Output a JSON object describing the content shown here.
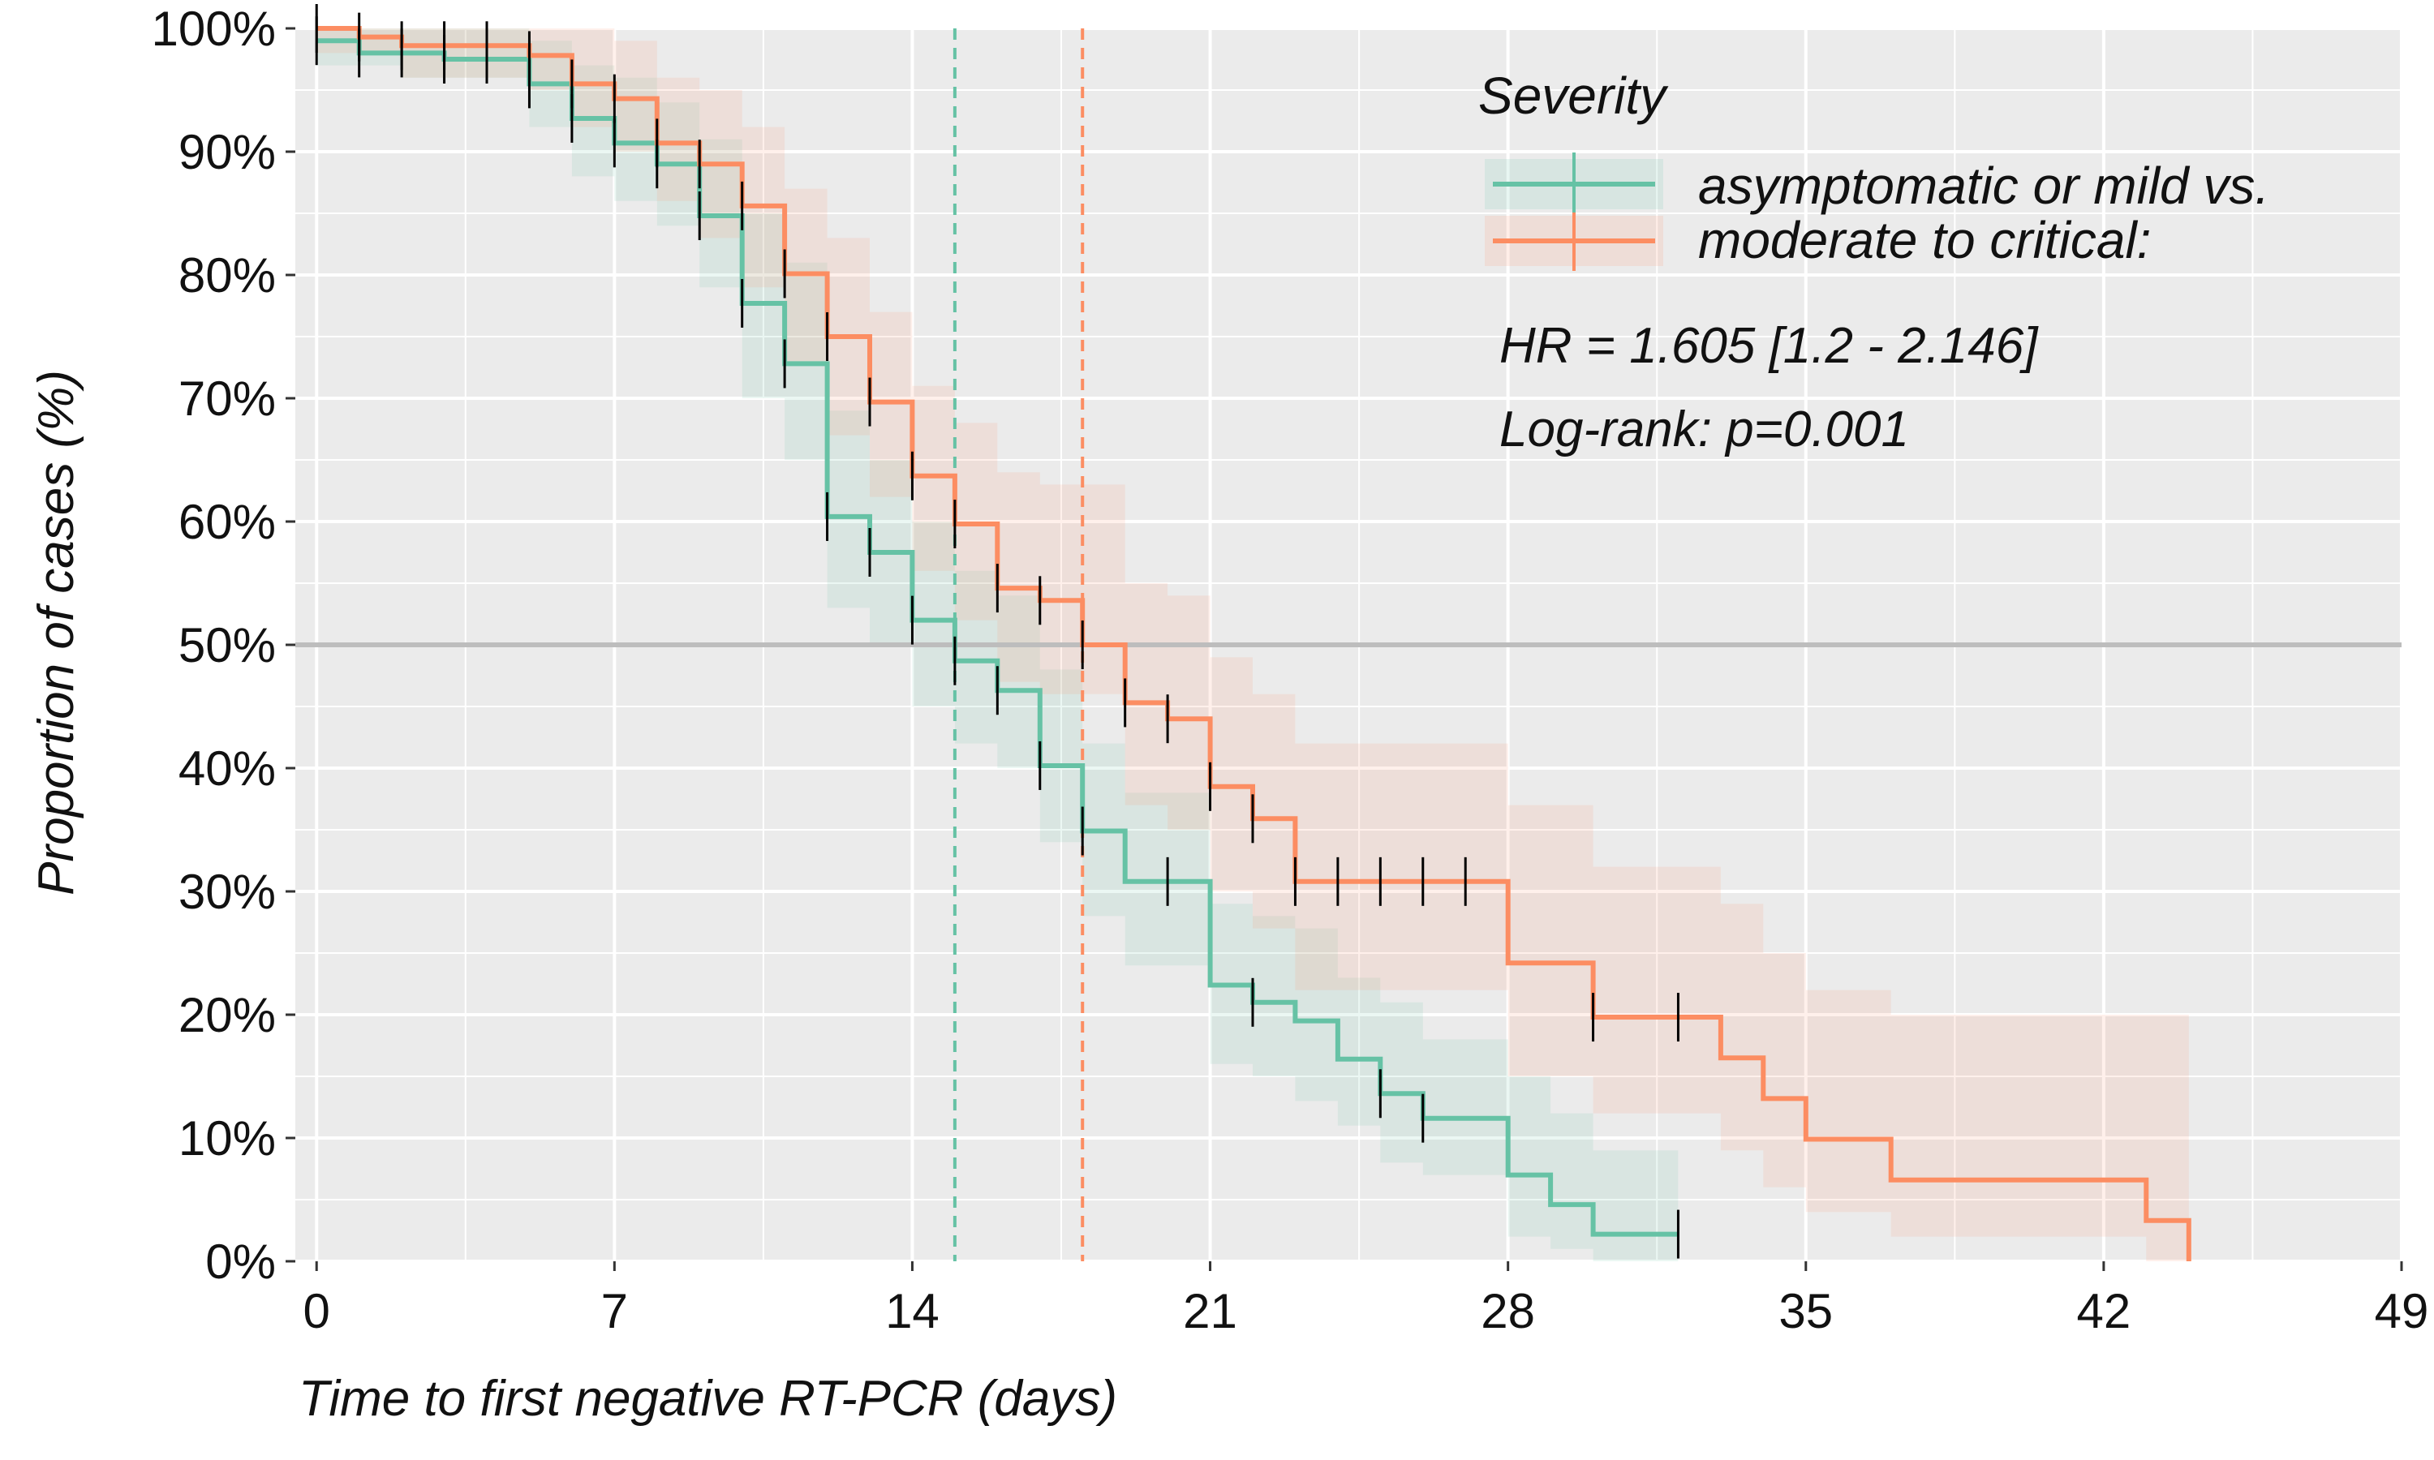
{
  "chart_data": {
    "type": "line",
    "subtype": "kaplan-meier",
    "xlabel": "Time to first negative RT-PCR (days)",
    "ylabel": "Proportion of cases (%)",
    "xlim": [
      -0.5,
      49
    ],
    "ylim": [
      0,
      1
    ],
    "x_ticks": [
      0,
      7,
      14,
      21,
      28,
      35,
      42,
      49
    ],
    "y_ticks": [
      0,
      0.1,
      0.2,
      0.3,
      0.4,
      0.5,
      0.6,
      0.7,
      0.8,
      0.9,
      1.0
    ],
    "y_tick_labels": [
      "0%",
      "10%",
      "20%",
      "30%",
      "40%",
      "50%",
      "60%",
      "70%",
      "80%",
      "90%",
      "100%"
    ],
    "grid": true,
    "reference_lines": {
      "horizontal_y": 0.5,
      "median_asymptomatic_or_mild_x": 15,
      "median_moderate_to_critical_x": 18
    },
    "legend": {
      "title": "Severity",
      "label_line1": "asymptomatic or mild vs.",
      "label_line2": "moderate to critical:",
      "placement": "top-right"
    },
    "annotations": {
      "hr": "HR = 1.605 [1.2 - 2.146]",
      "logrank": "Log-rank: p=0.001"
    },
    "series": [
      {
        "key": "asymptomatic_or_mild",
        "color": "#66c2a5",
        "steps": [
          [
            0,
            0.99
          ],
          [
            1,
            0.98
          ],
          [
            3,
            0.975
          ],
          [
            5,
            0.955
          ],
          [
            6,
            0.927
          ],
          [
            7,
            0.907
          ],
          [
            8,
            0.89
          ],
          [
            9,
            0.848
          ],
          [
            10,
            0.777
          ],
          [
            11,
            0.728
          ],
          [
            12,
            0.604
          ],
          [
            13,
            0.575
          ],
          [
            14,
            0.52
          ],
          [
            15,
            0.487
          ],
          [
            16,
            0.463
          ],
          [
            17,
            0.402
          ],
          [
            18,
            0.349
          ],
          [
            19,
            0.308
          ],
          [
            21,
            0.224
          ],
          [
            22,
            0.21
          ],
          [
            23,
            0.195
          ],
          [
            24,
            0.164
          ],
          [
            25,
            0.136
          ],
          [
            26,
            0.116
          ],
          [
            28,
            0.07
          ],
          [
            29,
            0.046
          ],
          [
            30,
            0.022
          ]
        ],
        "end_x": 32,
        "censor_x": [
          0,
          1,
          2,
          3,
          4,
          5,
          6,
          7,
          8,
          9,
          10,
          11,
          12,
          13,
          14,
          15,
          16,
          17,
          18,
          20,
          22,
          25,
          26,
          32
        ],
        "ci": [
          [
            0,
            1.0,
            0.97
          ],
          [
            2,
            1.0,
            0.96
          ],
          [
            5,
            0.99,
            0.92
          ],
          [
            6,
            0.97,
            0.88
          ],
          [
            7,
            0.96,
            0.86
          ],
          [
            8,
            0.94,
            0.84
          ],
          [
            9,
            0.91,
            0.79
          ],
          [
            10,
            0.85,
            0.7
          ],
          [
            11,
            0.81,
            0.65
          ],
          [
            12,
            0.69,
            0.53
          ],
          [
            13,
            0.65,
            0.5
          ],
          [
            14,
            0.6,
            0.45
          ],
          [
            15,
            0.56,
            0.42
          ],
          [
            16,
            0.54,
            0.4
          ],
          [
            17,
            0.48,
            0.34
          ],
          [
            18,
            0.42,
            0.28
          ],
          [
            19,
            0.38,
            0.24
          ],
          [
            21,
            0.29,
            0.16
          ],
          [
            22,
            0.28,
            0.15
          ],
          [
            23,
            0.27,
            0.13
          ],
          [
            24,
            0.23,
            0.11
          ],
          [
            25,
            0.21,
            0.08
          ],
          [
            26,
            0.18,
            0.07
          ],
          [
            28,
            0.15,
            0.02
          ],
          [
            29,
            0.12,
            0.01
          ],
          [
            30,
            0.09,
            0.0
          ]
        ]
      },
      {
        "key": "moderate_to_critical",
        "color": "#fc8d62",
        "steps": [
          [
            0,
            1.0
          ],
          [
            1,
            0.993
          ],
          [
            2,
            0.986
          ],
          [
            5,
            0.978
          ],
          [
            6,
            0.955
          ],
          [
            7,
            0.943
          ],
          [
            8,
            0.907
          ],
          [
            9,
            0.89
          ],
          [
            10,
            0.856
          ],
          [
            11,
            0.801
          ],
          [
            12,
            0.75
          ],
          [
            13,
            0.697
          ],
          [
            14,
            0.637
          ],
          [
            15,
            0.598
          ],
          [
            16,
            0.546
          ],
          [
            17,
            0.536
          ],
          [
            18,
            0.5
          ],
          [
            19,
            0.453
          ],
          [
            20,
            0.44
          ],
          [
            21,
            0.385
          ],
          [
            22,
            0.359
          ],
          [
            23,
            0.308
          ],
          [
            28,
            0.242
          ],
          [
            30,
            0.198
          ],
          [
            33,
            0.165
          ],
          [
            34,
            0.132
          ],
          [
            35,
            0.099
          ],
          [
            37,
            0.066
          ],
          [
            43,
            0.033
          ],
          [
            44,
            0.0
          ]
        ],
        "end_x": 44,
        "censor_x": [
          0,
          1,
          2,
          3,
          4,
          5,
          6,
          7,
          8,
          9,
          10,
          11,
          12,
          13,
          14,
          15,
          16,
          17,
          18,
          19,
          20,
          21,
          22,
          23,
          24,
          25,
          26,
          27,
          30,
          32
        ],
        "ci": [
          [
            0,
            1.0,
            0.98
          ],
          [
            2,
            1.0,
            0.96
          ],
          [
            5,
            1.0,
            0.95
          ],
          [
            6,
            1.0,
            0.92
          ],
          [
            7,
            0.99,
            0.9
          ],
          [
            8,
            0.96,
            0.86
          ],
          [
            9,
            0.95,
            0.83
          ],
          [
            10,
            0.92,
            0.79
          ],
          [
            11,
            0.87,
            0.73
          ],
          [
            12,
            0.83,
            0.67
          ],
          [
            13,
            0.77,
            0.62
          ],
          [
            14,
            0.71,
            0.56
          ],
          [
            15,
            0.68,
            0.52
          ],
          [
            16,
            0.64,
            0.47
          ],
          [
            17,
            0.63,
            0.46
          ],
          [
            19,
            0.55,
            0.37
          ],
          [
            20,
            0.54,
            0.35
          ],
          [
            21,
            0.49,
            0.3
          ],
          [
            22,
            0.46,
            0.27
          ],
          [
            23,
            0.42,
            0.22
          ],
          [
            28,
            0.37,
            0.15
          ],
          [
            30,
            0.32,
            0.12
          ],
          [
            33,
            0.29,
            0.09
          ],
          [
            34,
            0.25,
            0.06
          ],
          [
            35,
            0.22,
            0.04
          ],
          [
            37,
            0.2,
            0.02
          ],
          [
            43,
            0.2,
            0.0
          ],
          [
            44,
            0.2,
            0.0
          ]
        ]
      }
    ]
  }
}
